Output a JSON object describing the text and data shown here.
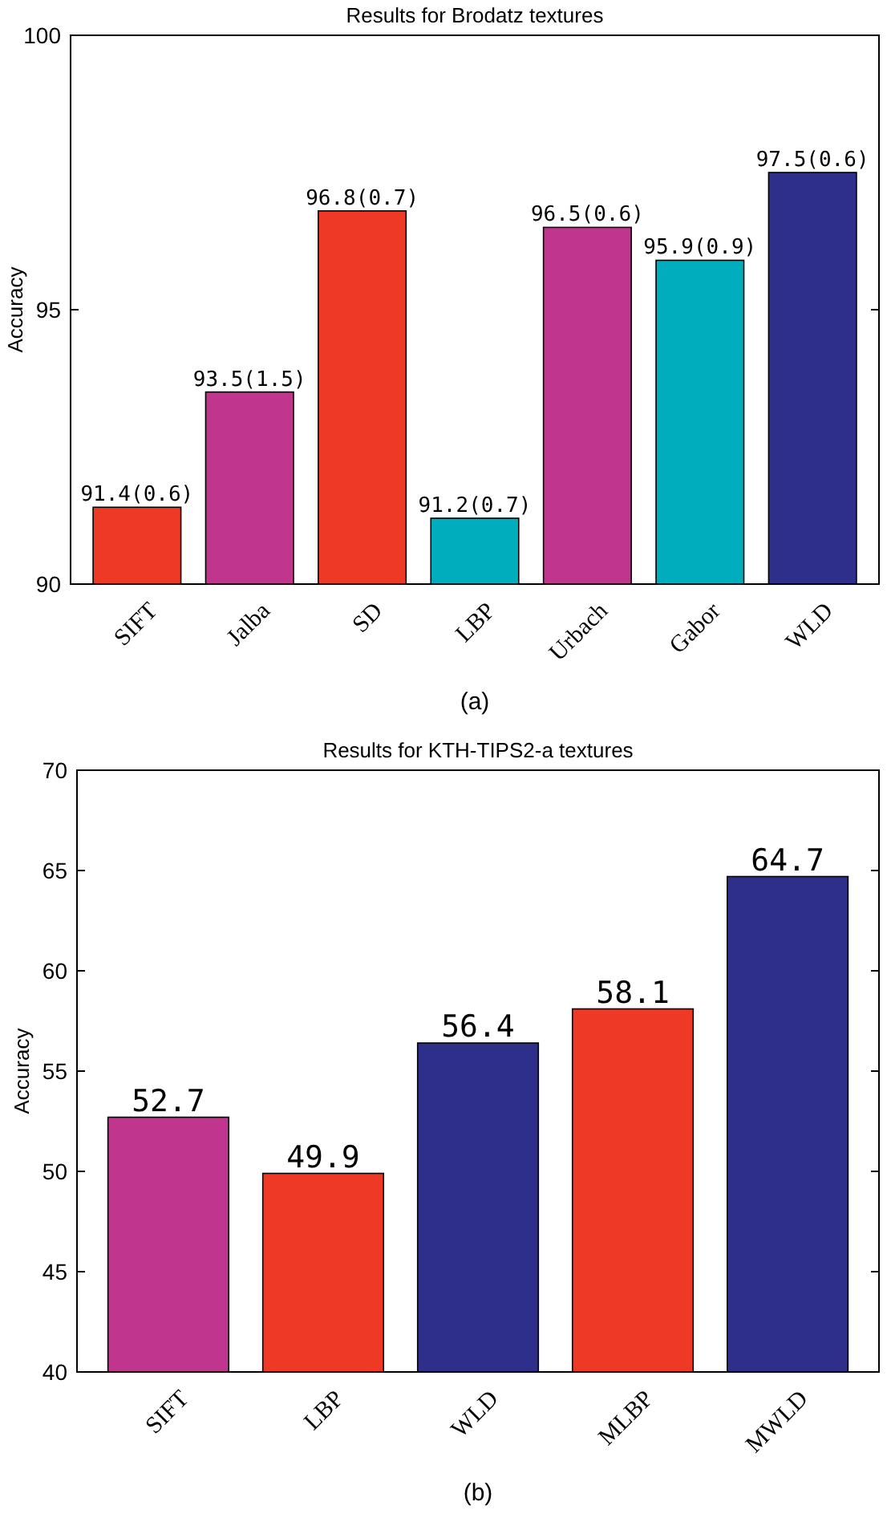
{
  "chart_data": [
    {
      "type": "bar",
      "title": "Results for Brodatz textures",
      "ylabel": "Accuracy",
      "annotations": [
        "(a)"
      ],
      "categories": [
        "SIFT",
        "Jalba",
        "SD",
        "LBP",
        "Urbach",
        "Gabor",
        "WLD"
      ],
      "values": [
        91.4,
        93.5,
        96.8,
        91.2,
        96.5,
        95.9,
        97.5
      ],
      "value_labels": [
        "91.4(0.6)",
        "93.5(1.5)",
        "96.8(0.7)",
        "91.2(0.7)",
        "96.5(0.6)",
        "95.9(0.9)",
        "97.5(0.6)"
      ],
      "colors": [
        "#ee3a24",
        "#c0368f",
        "#ee3a24",
        "#00adbd",
        "#c0368f",
        "#00adbd",
        "#2e2e8b"
      ],
      "ylim": [
        90,
        100
      ],
      "yticks": [
        90,
        95,
        100
      ],
      "grid": false
    },
    {
      "type": "bar",
      "title": "Results for KTH-TIPS2-a textures",
      "ylabel": "Accuracy",
      "annotations": [
        "(b)"
      ],
      "categories": [
        "SIFT",
        "LBP",
        "WLD",
        "MLBP",
        "MWLD"
      ],
      "values": [
        52.7,
        49.9,
        56.4,
        58.1,
        64.7
      ],
      "colors": [
        "#c0368f",
        "#ee3a24",
        "#2e2e8b",
        "#ee3a24",
        "#2e2e8b"
      ],
      "data_labels": true,
      "ylim": [
        40,
        70
      ],
      "yticks": [
        40,
        45,
        50,
        55,
        60,
        65,
        70
      ],
      "grid": false
    }
  ]
}
